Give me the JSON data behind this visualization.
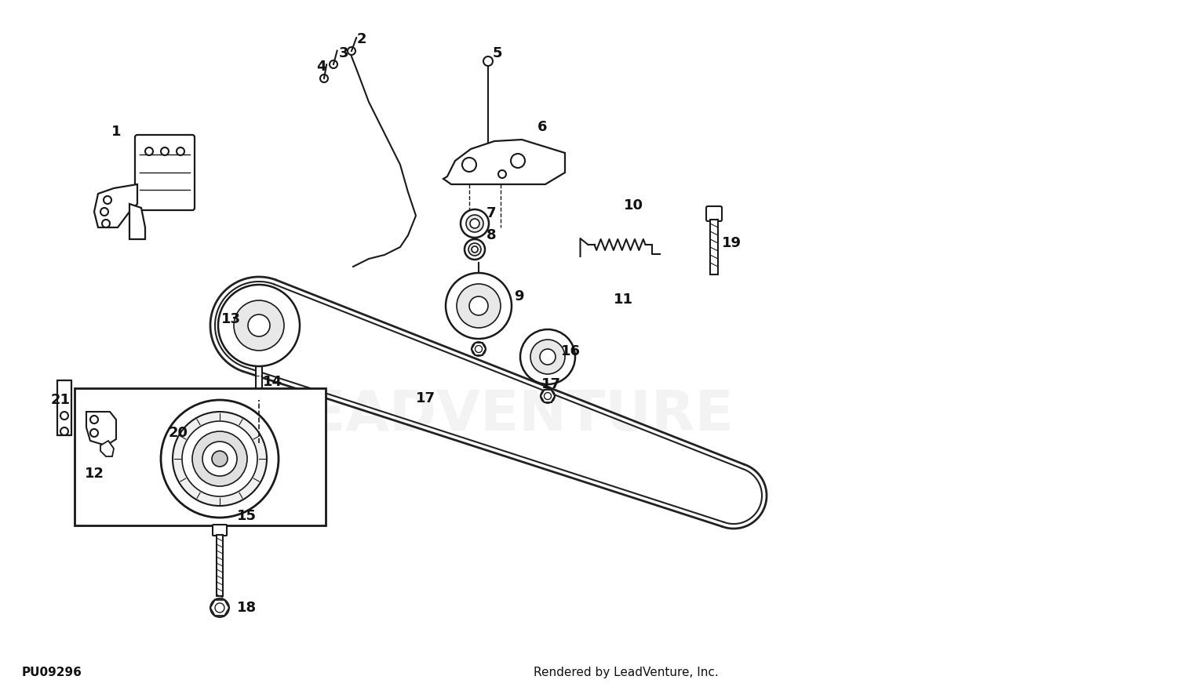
{
  "background_color": "#ffffff",
  "footer_left": "PU09296",
  "footer_right": "Rendered by LeadVenture, Inc.",
  "watermark": "LEADVENTURE",
  "line_color": "#1a1a1a",
  "fig_width": 15.0,
  "fig_height": 8.76,
  "dpi": 100
}
